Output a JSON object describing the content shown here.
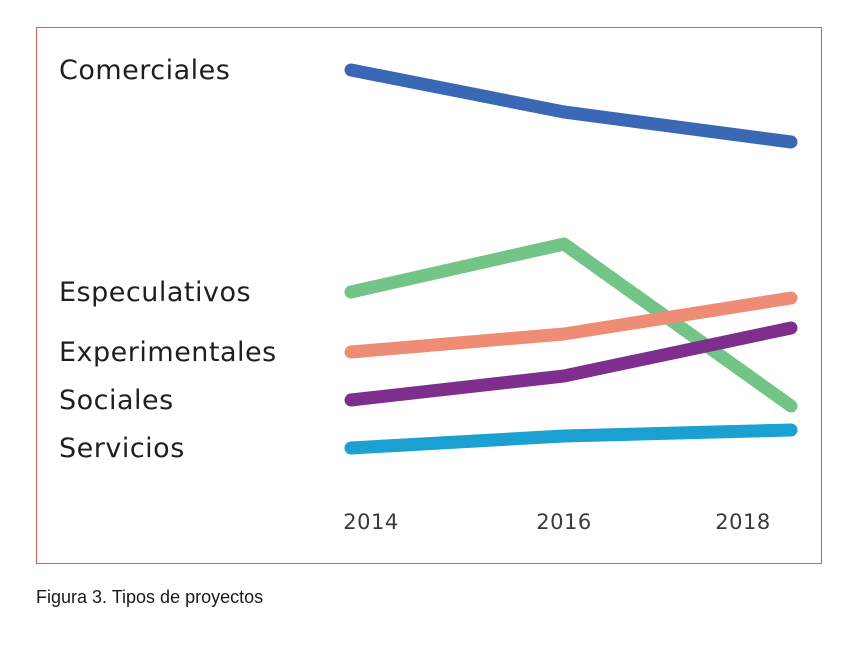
{
  "caption": "Figura 3. Tipos de proyectos",
  "chart_data": {
    "type": "line",
    "title": "",
    "xlabel": "",
    "ylabel": "",
    "x": [
      "2014",
      "2016",
      "2018"
    ],
    "grid": false,
    "legend": "direct labels at left",
    "series": [
      {
        "name": "Comerciales",
        "values": [
          9.3,
          8.6,
          8.1
        ],
        "color": "#3a68b4"
      },
      {
        "name": "Especulativos",
        "values": [
          5.6,
          6.4,
          3.7
        ],
        "color": "#72c487"
      },
      {
        "name": "Experimentales",
        "values": [
          4.6,
          4.9,
          5.5
        ],
        "color": "#ef8c76"
      },
      {
        "name": "Sociales",
        "values": [
          3.8,
          4.2,
          5.0
        ],
        "color": "#7e2f8e"
      },
      {
        "name": "Servicios",
        "values": [
          3.0,
          3.2,
          3.3
        ],
        "color": "#1aa0d1"
      }
    ]
  }
}
